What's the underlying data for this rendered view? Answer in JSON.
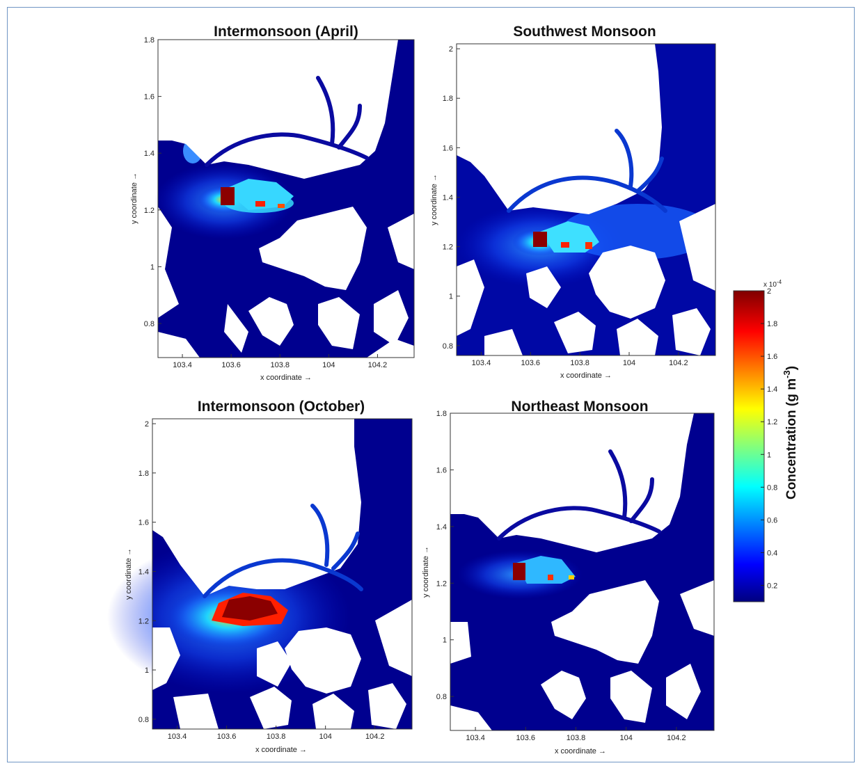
{
  "chart_data": [
    {
      "type": "heatmap",
      "title": "Intermonsoon (April)",
      "xlabel": "x coordinate →",
      "ylabel": "y coordinate →",
      "xlim": [
        103.3,
        104.35
      ],
      "ylim": [
        0.68,
        1.8
      ],
      "xticks": [
        103.4,
        103.6,
        103.8,
        104,
        104.2
      ],
      "xtick_labels": [
        "103.4",
        "103.6",
        "103.8",
        "104",
        "104.2"
      ],
      "yticks": [
        0.8,
        1,
        1.2,
        1.4,
        1.6,
        1.8
      ],
      "ytick_labels": [
        "0.8",
        "1",
        "1.2",
        "1.4",
        "1.6",
        "1.8"
      ],
      "plume": {
        "spread": 1.0,
        "peak": 1.6
      }
    },
    {
      "type": "heatmap",
      "title": "Southwest Monsoon",
      "xlabel": "x coordinate →",
      "ylabel": "y coordinate →",
      "xlim": [
        103.3,
        104.35
      ],
      "ylim": [
        0.76,
        2.02
      ],
      "xticks": [
        103.4,
        103.6,
        103.8,
        104,
        104.2
      ],
      "xtick_labels": [
        "103.4",
        "103.6",
        "103.8",
        "104",
        "104.2"
      ],
      "yticks": [
        0.8,
        1,
        1.2,
        1.4,
        1.6,
        1.8,
        2
      ],
      "ytick_labels": [
        "0.8",
        "1",
        "1.2",
        "1.4",
        "1.6",
        "1.8",
        "2"
      ],
      "plume": {
        "spread": 1.4,
        "peak": 1.5
      }
    },
    {
      "type": "heatmap",
      "title": "Intermonsoon (October)",
      "xlabel": "x coordinate →",
      "ylabel": "y coordinate →",
      "xlim": [
        103.3,
        104.35
      ],
      "ylim": [
        0.76,
        2.02
      ],
      "xticks": [
        103.4,
        103.6,
        103.8,
        104,
        104.2
      ],
      "xtick_labels": [
        "103.4",
        "103.6",
        "103.8",
        "104",
        "104.2"
      ],
      "yticks": [
        0.8,
        1,
        1.2,
        1.4,
        1.6,
        1.8,
        2
      ],
      "ytick_labels": [
        "0.8",
        "1",
        "1.2",
        "1.4",
        "1.6",
        "1.8",
        "2"
      ],
      "plume": {
        "spread": 2.2,
        "peak": 1.9
      }
    },
    {
      "type": "heatmap",
      "title": "Northeast Monsoon",
      "xlabel": "x coordinate →",
      "ylabel": "y coordinate →",
      "xlim": [
        103.3,
        104.35
      ],
      "ylim": [
        0.68,
        1.8
      ],
      "xticks": [
        103.4,
        103.6,
        103.8,
        104,
        104.2
      ],
      "xtick_labels": [
        "103.4",
        "103.6",
        "103.8",
        "104",
        "104.2"
      ],
      "yticks": [
        0.8,
        1,
        1.2,
        1.4,
        1.6,
        1.8
      ],
      "ytick_labels": [
        "0.8",
        "1",
        "1.2",
        "1.4",
        "1.6",
        "1.8"
      ],
      "plume": {
        "spread": 0.8,
        "peak": 1.5
      }
    }
  ],
  "colorbar": {
    "label": "Concentration (g m",
    "label_superscript": "-3",
    "label_close": ")",
    "multiplier": "x 10",
    "multiplier_exp": "-4",
    "range": [
      0.1,
      2.0
    ],
    "ticks": [
      0.2,
      0.4,
      0.6,
      0.8,
      1,
      1.2,
      1.4,
      1.6,
      1.8,
      2
    ],
    "tick_labels": [
      "0.2",
      "0.4",
      "0.6",
      "0.8",
      "1",
      "1.2",
      "1.4",
      "1.6",
      "1.8",
      "2"
    ],
    "colormap": "jet"
  },
  "colors": {
    "water_low": "#00008f",
    "land": "#ffffff",
    "frame_border": "#6f95c4"
  }
}
